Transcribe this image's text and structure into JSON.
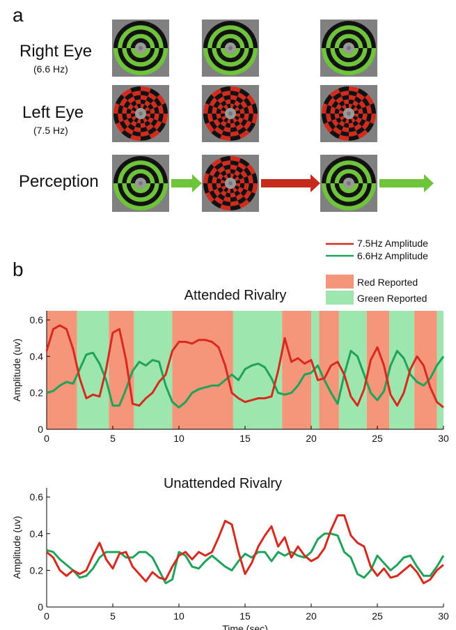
{
  "panel_a": {
    "label": "a",
    "rows": [
      {
        "label": "Right Eye",
        "sublabel": "(6.6 Hz)"
      },
      {
        "label": "Left Eye",
        "sublabel": "(7.5 Hz)"
      },
      {
        "label": "Perception",
        "sublabel": ""
      }
    ],
    "perception_sequence": [
      "green",
      "red",
      "green"
    ],
    "arrow_colors": [
      "green",
      "red",
      "green"
    ]
  },
  "panel_b": {
    "label": "b",
    "line_legend": [
      "7.5Hz Amplitude",
      "6.6Hz Amplitude"
    ],
    "band_legend": [
      "Red Reported",
      "Green Reported"
    ]
  },
  "colors": {
    "red_line": "#d8291f",
    "green_line": "#1ea35a",
    "red_band": "#f5967a",
    "green_band": "#9fe6ae",
    "stim_green": "#6fc53a",
    "stim_red": "#d32a1e",
    "stim_bg": "#808080"
  },
  "chart_data": [
    {
      "type": "line",
      "title": "Attended Rivalry",
      "xlabel": "",
      "ylabel": "Amplitude (uv)",
      "xlim": [
        0,
        30
      ],
      "ylim": [
        0,
        0.65
      ],
      "xticks": [
        0,
        5,
        10,
        15,
        20,
        25,
        30
      ],
      "yticks": [
        0,
        0.2,
        0.4,
        0.6
      ],
      "bands": [
        {
          "start": 0,
          "end": 2.3,
          "label": "red"
        },
        {
          "start": 2.3,
          "end": 4.7,
          "label": "green"
        },
        {
          "start": 4.7,
          "end": 6.6,
          "label": "red"
        },
        {
          "start": 6.6,
          "end": 9.5,
          "label": "green"
        },
        {
          "start": 9.5,
          "end": 14.1,
          "label": "red"
        },
        {
          "start": 14.1,
          "end": 17.8,
          "label": "green"
        },
        {
          "start": 17.8,
          "end": 20.0,
          "label": "red"
        },
        {
          "start": 20.0,
          "end": 20.6,
          "label": "green"
        },
        {
          "start": 20.6,
          "end": 22.1,
          "label": "red"
        },
        {
          "start": 22.1,
          "end": 24.2,
          "label": "green"
        },
        {
          "start": 24.2,
          "end": 25.9,
          "label": "red"
        },
        {
          "start": 25.9,
          "end": 27.8,
          "label": "green"
        },
        {
          "start": 27.8,
          "end": 29.5,
          "label": "red"
        },
        {
          "start": 29.5,
          "end": 30,
          "label": "green"
        }
      ],
      "series": [
        {
          "name": "7.5Hz Amplitude",
          "color": "red",
          "x": [
            0,
            0.5,
            1,
            1.5,
            2,
            2.5,
            3,
            3.5,
            4,
            4.5,
            5,
            5.5,
            6,
            6.5,
            7,
            7.5,
            8,
            8.5,
            9,
            9.5,
            10,
            10.5,
            11,
            11.5,
            12,
            12.5,
            13,
            13.5,
            14,
            14.5,
            15,
            15.5,
            16,
            16.5,
            17,
            17.5,
            18,
            18.5,
            19,
            19.5,
            20,
            20.5,
            21,
            21.5,
            22,
            22.5,
            23,
            23.5,
            24,
            24.5,
            25,
            25.5,
            26,
            26.5,
            27,
            27.5,
            28,
            28.5,
            29,
            29.5,
            30
          ],
          "y": [
            0.43,
            0.55,
            0.57,
            0.55,
            0.44,
            0.28,
            0.17,
            0.19,
            0.18,
            0.33,
            0.53,
            0.55,
            0.38,
            0.14,
            0.13,
            0.17,
            0.2,
            0.26,
            0.3,
            0.43,
            0.48,
            0.48,
            0.47,
            0.49,
            0.49,
            0.48,
            0.45,
            0.35,
            0.2,
            0.17,
            0.15,
            0.16,
            0.17,
            0.17,
            0.18,
            0.32,
            0.5,
            0.37,
            0.39,
            0.36,
            0.38,
            0.27,
            0.28,
            0.35,
            0.37,
            0.3,
            0.18,
            0.13,
            0.22,
            0.38,
            0.45,
            0.35,
            0.19,
            0.13,
            0.2,
            0.33,
            0.4,
            0.35,
            0.23,
            0.15,
            0.12
          ]
        },
        {
          "name": "6.6Hz Amplitude",
          "color": "green",
          "x": [
            0,
            0.5,
            1,
            1.5,
            2,
            2.5,
            3,
            3.5,
            4,
            4.5,
            5,
            5.5,
            6,
            6.5,
            7,
            7.5,
            8,
            8.5,
            9,
            9.5,
            10,
            10.5,
            11,
            11.5,
            12,
            12.5,
            13,
            13.5,
            14,
            14.5,
            15,
            15.5,
            16,
            16.5,
            17,
            17.5,
            18,
            18.5,
            19,
            19.5,
            20,
            20.5,
            21,
            21.5,
            22,
            22.5,
            23,
            23.5,
            24,
            24.5,
            25,
            25.5,
            26,
            26.5,
            27,
            27.5,
            28,
            28.5,
            29,
            29.5,
            30
          ],
          "y": [
            0.2,
            0.21,
            0.24,
            0.26,
            0.25,
            0.33,
            0.41,
            0.42,
            0.36,
            0.27,
            0.13,
            0.13,
            0.22,
            0.32,
            0.37,
            0.35,
            0.38,
            0.37,
            0.24,
            0.15,
            0.12,
            0.15,
            0.2,
            0.22,
            0.23,
            0.24,
            0.24,
            0.27,
            0.3,
            0.27,
            0.33,
            0.35,
            0.36,
            0.34,
            0.28,
            0.2,
            0.19,
            0.2,
            0.24,
            0.3,
            0.31,
            0.35,
            0.27,
            0.2,
            0.14,
            0.3,
            0.43,
            0.4,
            0.3,
            0.2,
            0.16,
            0.21,
            0.35,
            0.43,
            0.39,
            0.3,
            0.26,
            0.24,
            0.28,
            0.35,
            0.4
          ]
        }
      ]
    },
    {
      "type": "line",
      "title": "Unattended Rivalry",
      "xlabel": "Time (sec)",
      "ylabel": "Amplitude (uv)",
      "xlim": [
        0,
        30
      ],
      "ylim": [
        0,
        0.65
      ],
      "xticks": [
        0,
        5,
        10,
        15,
        20,
        25,
        30
      ],
      "yticks": [
        0,
        0.2,
        0.4,
        0.6
      ],
      "series": [
        {
          "name": "7.5Hz Amplitude",
          "color": "red",
          "x": [
            0,
            0.5,
            1,
            1.5,
            2,
            2.5,
            3,
            3.5,
            4,
            4.5,
            5,
            5.5,
            6,
            6.5,
            7,
            7.5,
            8,
            8.5,
            9,
            9.5,
            10,
            10.5,
            11,
            11.5,
            12,
            12.5,
            13,
            13.5,
            14,
            14.5,
            15,
            15.5,
            16,
            16.5,
            17,
            17.5,
            18,
            18.5,
            19,
            19.5,
            20,
            20.5,
            21,
            21.5,
            22,
            22.5,
            23,
            23.5,
            24,
            24.5,
            25,
            25.5,
            26,
            26.5,
            27,
            27.5,
            28,
            28.5,
            29,
            29.5,
            30
          ],
          "y": [
            0.3,
            0.27,
            0.2,
            0.17,
            0.2,
            0.18,
            0.2,
            0.28,
            0.35,
            0.26,
            0.21,
            0.29,
            0.3,
            0.22,
            0.18,
            0.14,
            0.19,
            0.16,
            0.15,
            0.22,
            0.28,
            0.3,
            0.26,
            0.3,
            0.28,
            0.3,
            0.38,
            0.47,
            0.45,
            0.3,
            0.18,
            0.24,
            0.33,
            0.39,
            0.44,
            0.33,
            0.38,
            0.27,
            0.33,
            0.28,
            0.25,
            0.27,
            0.32,
            0.42,
            0.5,
            0.5,
            0.39,
            0.35,
            0.33,
            0.22,
            0.17,
            0.21,
            0.16,
            0.17,
            0.2,
            0.23,
            0.19,
            0.13,
            0.15,
            0.2,
            0.23
          ]
        },
        {
          "name": "6.6Hz Amplitude",
          "color": "green",
          "x": [
            0,
            0.5,
            1,
            1.5,
            2,
            2.5,
            3,
            3.5,
            4,
            4.5,
            5,
            5.5,
            6,
            6.5,
            7,
            7.5,
            8,
            8.5,
            9,
            9.5,
            10,
            10.5,
            11,
            11.5,
            12,
            12.5,
            13,
            13.5,
            14,
            14.5,
            15,
            15.5,
            16,
            16.5,
            17,
            17.5,
            18,
            18.5,
            19,
            19.5,
            20,
            20.5,
            21,
            21.5,
            22,
            22.5,
            23,
            23.5,
            24,
            24.5,
            25,
            25.5,
            26,
            26.5,
            27,
            27.5,
            28,
            28.5,
            29,
            29.5,
            30
          ],
          "y": [
            0.31,
            0.3,
            0.26,
            0.23,
            0.2,
            0.16,
            0.17,
            0.21,
            0.27,
            0.3,
            0.3,
            0.3,
            0.27,
            0.27,
            0.3,
            0.3,
            0.27,
            0.2,
            0.13,
            0.15,
            0.3,
            0.28,
            0.22,
            0.21,
            0.25,
            0.28,
            0.25,
            0.22,
            0.2,
            0.25,
            0.29,
            0.27,
            0.3,
            0.3,
            0.25,
            0.3,
            0.28,
            0.3,
            0.28,
            0.27,
            0.3,
            0.37,
            0.4,
            0.4,
            0.39,
            0.3,
            0.27,
            0.18,
            0.16,
            0.2,
            0.28,
            0.24,
            0.2,
            0.23,
            0.27,
            0.28,
            0.22,
            0.17,
            0.17,
            0.22,
            0.28
          ]
        }
      ]
    }
  ]
}
